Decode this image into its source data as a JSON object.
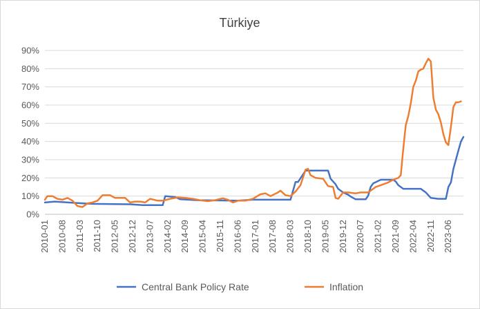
{
  "chart_data": {
    "type": "line",
    "title": "Türkiye",
    "ylim": [
      0,
      0.9
    ],
    "yticks": [
      0,
      0.1,
      0.2,
      0.3,
      0.4,
      0.5,
      0.6,
      0.7,
      0.8,
      0.9
    ],
    "ytick_labels": [
      "0%",
      "10%",
      "20%",
      "30%",
      "40%",
      "50%",
      "60%",
      "70%",
      "80%",
      "90%"
    ],
    "xtick_labels": [
      "2010-01",
      "2010-08",
      "2011-03",
      "2011-10",
      "2012-05",
      "2012-12",
      "2013-07",
      "2014-02",
      "2014-09",
      "2015-04",
      "2015-11",
      "2016-06",
      "2017-01",
      "2017-08",
      "2018-03",
      "2018-10",
      "2019-05",
      "2019-12",
      "2020-07",
      "2021-02",
      "2021-09",
      "2022-04",
      "2022-11",
      "2023-06"
    ],
    "grid": true,
    "legend_position": "bottom",
    "x_start": "2010-01",
    "x_end": "2023-12",
    "series": [
      {
        "name": "Central Bank Policy Rate",
        "color": "#4472C4",
        "points": [
          [
            "2010-01",
            0.065
          ],
          [
            "2010-05",
            0.07
          ],
          [
            "2011-01",
            0.0625
          ],
          [
            "2011-08",
            0.0575
          ],
          [
            "2012-11",
            0.055
          ],
          [
            "2013-04",
            0.05
          ],
          [
            "2013-12",
            0.05
          ],
          [
            "2014-01",
            0.1
          ],
          [
            "2014-05",
            0.095
          ],
          [
            "2014-07",
            0.0825
          ],
          [
            "2015-02",
            0.0775
          ],
          [
            "2016-06",
            0.075
          ],
          [
            "2016-12",
            0.08
          ],
          [
            "2018-03",
            0.08
          ],
          [
            "2018-05",
            0.1775
          ],
          [
            "2018-06",
            0.1775
          ],
          [
            "2018-09",
            0.24
          ],
          [
            "2019-06",
            0.24
          ],
          [
            "2019-07",
            0.195
          ],
          [
            "2019-09",
            0.165
          ],
          [
            "2019-10",
            0.14
          ],
          [
            "2019-12",
            0.12
          ],
          [
            "2020-02",
            0.1075
          ],
          [
            "2020-03",
            0.0975
          ],
          [
            "2020-05",
            0.0825
          ],
          [
            "2020-09",
            0.0825
          ],
          [
            "2020-10",
            0.1025
          ],
          [
            "2020-11",
            0.15
          ],
          [
            "2020-12",
            0.17
          ],
          [
            "2021-03",
            0.19
          ],
          [
            "2021-08",
            0.19
          ],
          [
            "2021-09",
            0.18
          ],
          [
            "2021-10",
            0.16
          ],
          [
            "2021-11",
            0.15
          ],
          [
            "2021-12",
            0.14
          ],
          [
            "2022-07",
            0.14
          ],
          [
            "2022-08",
            0.13
          ],
          [
            "2022-09",
            0.12
          ],
          [
            "2022-10",
            0.105
          ],
          [
            "2022-11",
            0.09
          ],
          [
            "2023-02",
            0.085
          ],
          [
            "2023-05",
            0.085
          ],
          [
            "2023-06",
            0.15
          ],
          [
            "2023-07",
            0.175
          ],
          [
            "2023-08",
            0.25
          ],
          [
            "2023-09",
            0.3
          ],
          [
            "2023-10",
            0.35
          ],
          [
            "2023-11",
            0.4
          ],
          [
            "2023-12",
            0.425
          ]
        ]
      },
      {
        "name": "Inflation",
        "color": "#ED7D31",
        "points": [
          [
            "2010-01",
            0.08
          ],
          [
            "2010-02",
            0.1
          ],
          [
            "2010-04",
            0.1
          ],
          [
            "2010-06",
            0.085
          ],
          [
            "2010-08",
            0.08
          ],
          [
            "2010-10",
            0.09
          ],
          [
            "2010-12",
            0.075
          ],
          [
            "2011-02",
            0.045
          ],
          [
            "2011-04",
            0.04
          ],
          [
            "2011-06",
            0.06
          ],
          [
            "2011-08",
            0.065
          ],
          [
            "2011-10",
            0.075
          ],
          [
            "2011-12",
            0.105
          ],
          [
            "2012-03",
            0.105
          ],
          [
            "2012-05",
            0.09
          ],
          [
            "2012-07",
            0.09
          ],
          [
            "2012-09",
            0.09
          ],
          [
            "2012-11",
            0.065
          ],
          [
            "2013-01",
            0.07
          ],
          [
            "2013-03",
            0.07
          ],
          [
            "2013-05",
            0.065
          ],
          [
            "2013-07",
            0.085
          ],
          [
            "2013-10",
            0.075
          ],
          [
            "2013-12",
            0.075
          ],
          [
            "2014-03",
            0.085
          ],
          [
            "2014-06",
            0.093
          ],
          [
            "2014-09",
            0.09
          ],
          [
            "2014-12",
            0.085
          ],
          [
            "2015-03",
            0.077
          ],
          [
            "2015-06",
            0.072
          ],
          [
            "2015-09",
            0.078
          ],
          [
            "2015-12",
            0.088
          ],
          [
            "2016-02",
            0.08
          ],
          [
            "2016-04",
            0.065
          ],
          [
            "2016-06",
            0.075
          ],
          [
            "2016-09",
            0.075
          ],
          [
            "2016-12",
            0.085
          ],
          [
            "2017-03",
            0.11
          ],
          [
            "2017-05",
            0.115
          ],
          [
            "2017-07",
            0.1
          ],
          [
            "2017-10",
            0.12
          ],
          [
            "2017-11",
            0.13
          ],
          [
            "2018-01",
            0.105
          ],
          [
            "2018-03",
            0.1
          ],
          [
            "2018-05",
            0.125
          ],
          [
            "2018-07",
            0.16
          ],
          [
            "2018-09",
            0.245
          ],
          [
            "2018-10",
            0.25
          ],
          [
            "2018-11",
            0.215
          ],
          [
            "2019-01",
            0.2
          ],
          [
            "2019-04",
            0.195
          ],
          [
            "2019-06",
            0.155
          ],
          [
            "2019-08",
            0.15
          ],
          [
            "2019-09",
            0.09
          ],
          [
            "2019-10",
            0.085
          ],
          [
            "2019-12",
            0.12
          ],
          [
            "2020-02",
            0.12
          ],
          [
            "2020-05",
            0.115
          ],
          [
            "2020-07",
            0.12
          ],
          [
            "2020-10",
            0.12
          ],
          [
            "2021-01",
            0.15
          ],
          [
            "2021-03",
            0.16
          ],
          [
            "2021-06",
            0.175
          ],
          [
            "2021-08",
            0.19
          ],
          [
            "2021-10",
            0.2
          ],
          [
            "2021-11",
            0.215
          ],
          [
            "2021-12",
            0.36
          ],
          [
            "2022-01",
            0.49
          ],
          [
            "2022-02",
            0.54
          ],
          [
            "2022-03",
            0.61
          ],
          [
            "2022-04",
            0.7
          ],
          [
            "2022-05",
            0.735
          ],
          [
            "2022-06",
            0.785
          ],
          [
            "2022-07",
            0.795
          ],
          [
            "2022-08",
            0.8
          ],
          [
            "2022-09",
            0.83
          ],
          [
            "2022-10",
            0.855
          ],
          [
            "2022-11",
            0.84
          ],
          [
            "2022-12",
            0.64
          ],
          [
            "2023-01",
            0.575
          ],
          [
            "2023-02",
            0.55
          ],
          [
            "2023-03",
            0.505
          ],
          [
            "2023-04",
            0.44
          ],
          [
            "2023-05",
            0.395
          ],
          [
            "2023-06",
            0.38
          ],
          [
            "2023-07",
            0.48
          ],
          [
            "2023-08",
            0.59
          ],
          [
            "2023-09",
            0.615
          ],
          [
            "2023-10",
            0.615
          ],
          [
            "2023-11",
            0.62
          ]
        ]
      }
    ]
  }
}
